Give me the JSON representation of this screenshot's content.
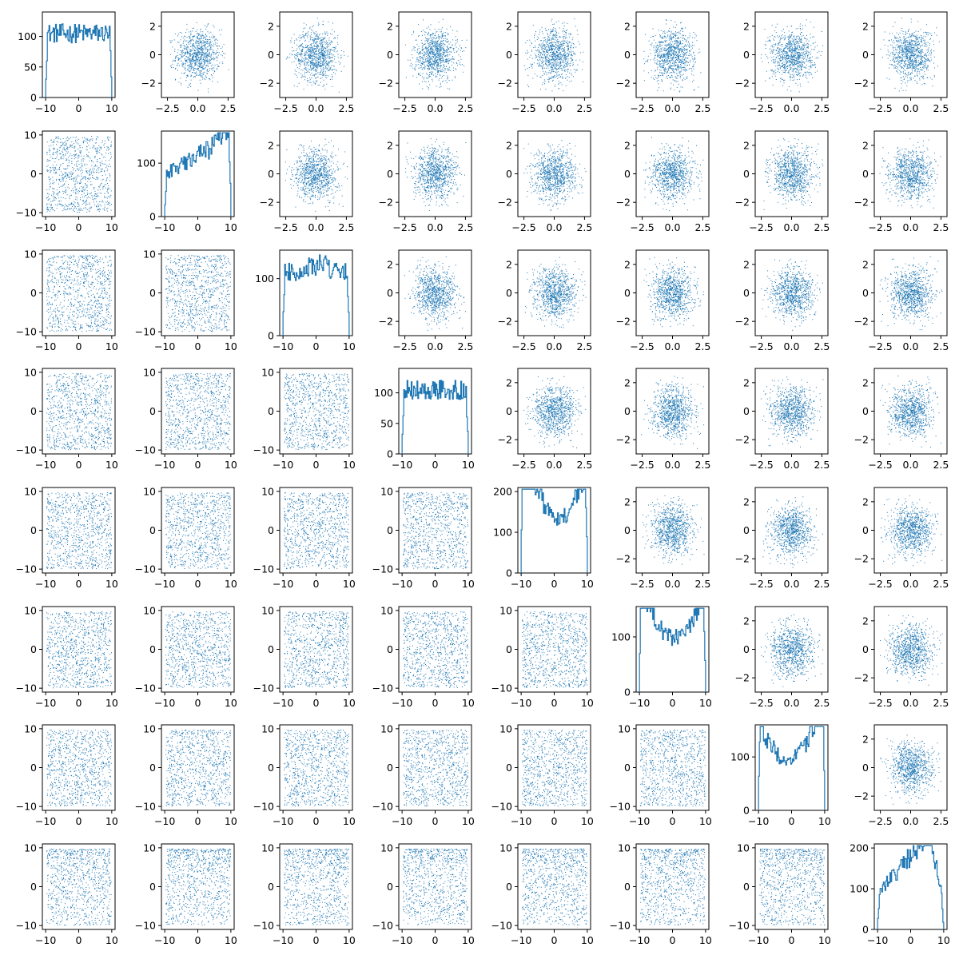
{
  "chart_data": {
    "type": "scatter",
    "layout": "pairplot-8x8",
    "description_free": true,
    "series_color": "#1f77b4",
    "n_variables": 8,
    "variables": [
      {
        "range": [
          -10,
          10
        ],
        "hist_shape": "flat",
        "hist_ylim": [
          0,
          140
        ],
        "hist_yticks": [
          0,
          50,
          100
        ]
      },
      {
        "range": [
          -10,
          10
        ],
        "hist_shape": "flat-rise",
        "hist_ylim": [
          0,
          160
        ],
        "hist_yticks": [
          0,
          100
        ]
      },
      {
        "range": [
          -10,
          10
        ],
        "hist_shape": "flat-hump",
        "hist_ylim": [
          0,
          150
        ],
        "hist_yticks": [
          0,
          100
        ]
      },
      {
        "range": [
          -10,
          10
        ],
        "hist_shape": "flat",
        "hist_ylim": [
          0,
          140
        ],
        "hist_yticks": [
          0,
          50,
          100
        ]
      },
      {
        "range": [
          -10,
          10
        ],
        "hist_shape": "u-left",
        "hist_ylim": [
          0,
          210
        ],
        "hist_yticks": [
          0,
          100,
          200
        ]
      },
      {
        "range": [
          -10,
          10
        ],
        "hist_shape": "u",
        "hist_ylim": [
          0,
          155
        ],
        "hist_yticks": [
          0,
          100
        ]
      },
      {
        "range": [
          -10,
          10
        ],
        "hist_shape": "u-right",
        "hist_ylim": [
          0,
          160
        ],
        "hist_yticks": [
          0,
          100
        ]
      },
      {
        "range": [
          -10,
          10
        ],
        "hist_shape": "rise-right",
        "hist_ylim": [
          0,
          210
        ],
        "hist_yticks": [
          0,
          100,
          200
        ]
      }
    ],
    "lower_triangle": {
      "kind": "scatter",
      "xlim": [
        -11,
        11
      ],
      "ylim": [
        -11,
        11
      ],
      "xticks": [
        -10,
        0,
        10
      ],
      "yticks": [
        -10,
        0,
        10
      ]
    },
    "upper_triangle": {
      "kind": "scatter",
      "distribution": "gaussian-2d",
      "xlim": [
        -3,
        3
      ],
      "ylim": [
        -3,
        3
      ],
      "xticks": [
        -2.5,
        0.0,
        2.5
      ],
      "yticks": [
        -2,
        0,
        2
      ]
    },
    "diagonal": {
      "kind": "histogram",
      "xticks": [
        -10,
        0,
        10
      ]
    },
    "points_per_panel": 900,
    "title": "",
    "xlabel": "",
    "ylabel": ""
  }
}
